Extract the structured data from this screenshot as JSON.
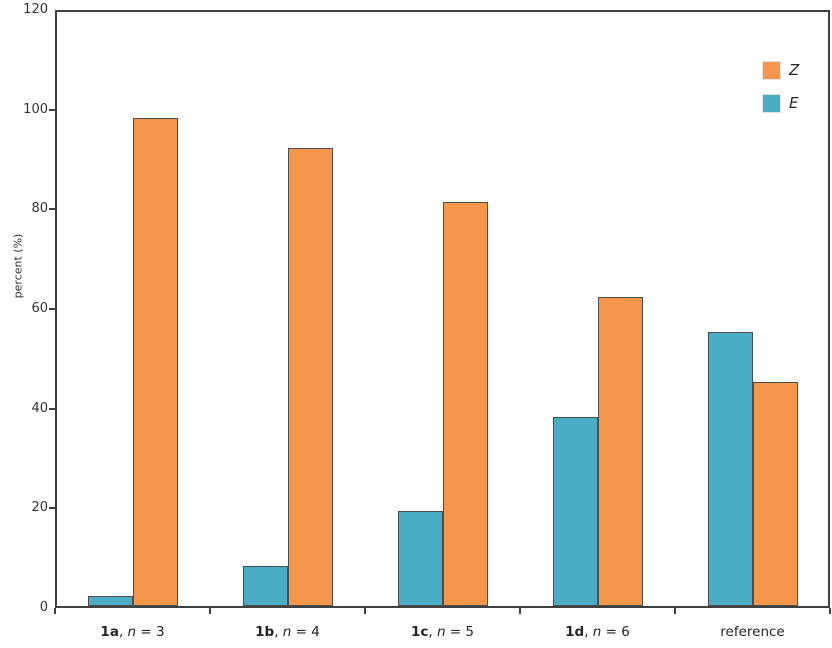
{
  "chart_data": {
    "type": "bar",
    "title": "",
    "xlabel": "",
    "ylabel": "percent (%)",
    "ylim": [
      0,
      120
    ],
    "yticks": [
      0,
      20,
      40,
      60,
      80,
      100,
      120
    ],
    "grid": false,
    "legend_position": "top-right",
    "categories": [
      {
        "parts": [
          {
            "t": "1a",
            "style": "bold"
          },
          {
            "t": ", ",
            "style": "normal"
          },
          {
            "t": "n",
            "style": "italic"
          },
          {
            "t": " = 3",
            "style": "normal"
          }
        ]
      },
      {
        "parts": [
          {
            "t": "1b",
            "style": "bold"
          },
          {
            "t": ", ",
            "style": "normal"
          },
          {
            "t": "n",
            "style": "italic"
          },
          {
            "t": " = 4",
            "style": "normal"
          }
        ]
      },
      {
        "parts": [
          {
            "t": "1c",
            "style": "bold"
          },
          {
            "t": ", ",
            "style": "normal"
          },
          {
            "t": "n",
            "style": "italic"
          },
          {
            "t": " = 5",
            "style": "normal"
          }
        ]
      },
      {
        "parts": [
          {
            "t": "1d",
            "style": "bold"
          },
          {
            "t": ", ",
            "style": "normal"
          },
          {
            "t": "n",
            "style": "italic"
          },
          {
            "t": " = 6",
            "style": "normal"
          }
        ]
      },
      {
        "parts": [
          {
            "t": "reference",
            "style": "normal"
          }
        ]
      }
    ],
    "series": [
      {
        "name": "E",
        "color": "#4BACC6",
        "values": [
          2,
          8,
          19,
          38,
          55
        ]
      },
      {
        "name": "Z",
        "color": "#F4964B",
        "values": [
          98,
          92,
          81,
          62,
          45
        ]
      }
    ],
    "legend": [
      {
        "label": "Z",
        "color": "#F4964B"
      },
      {
        "label": "E",
        "color": "#4BACC6"
      }
    ]
  },
  "colors": {
    "axis": "#404040",
    "bar_border": "#4D4D4D",
    "text": "#333333",
    "background": "#FFFFFF",
    "orange": "#F4964B",
    "teal": "#4BACC6"
  }
}
